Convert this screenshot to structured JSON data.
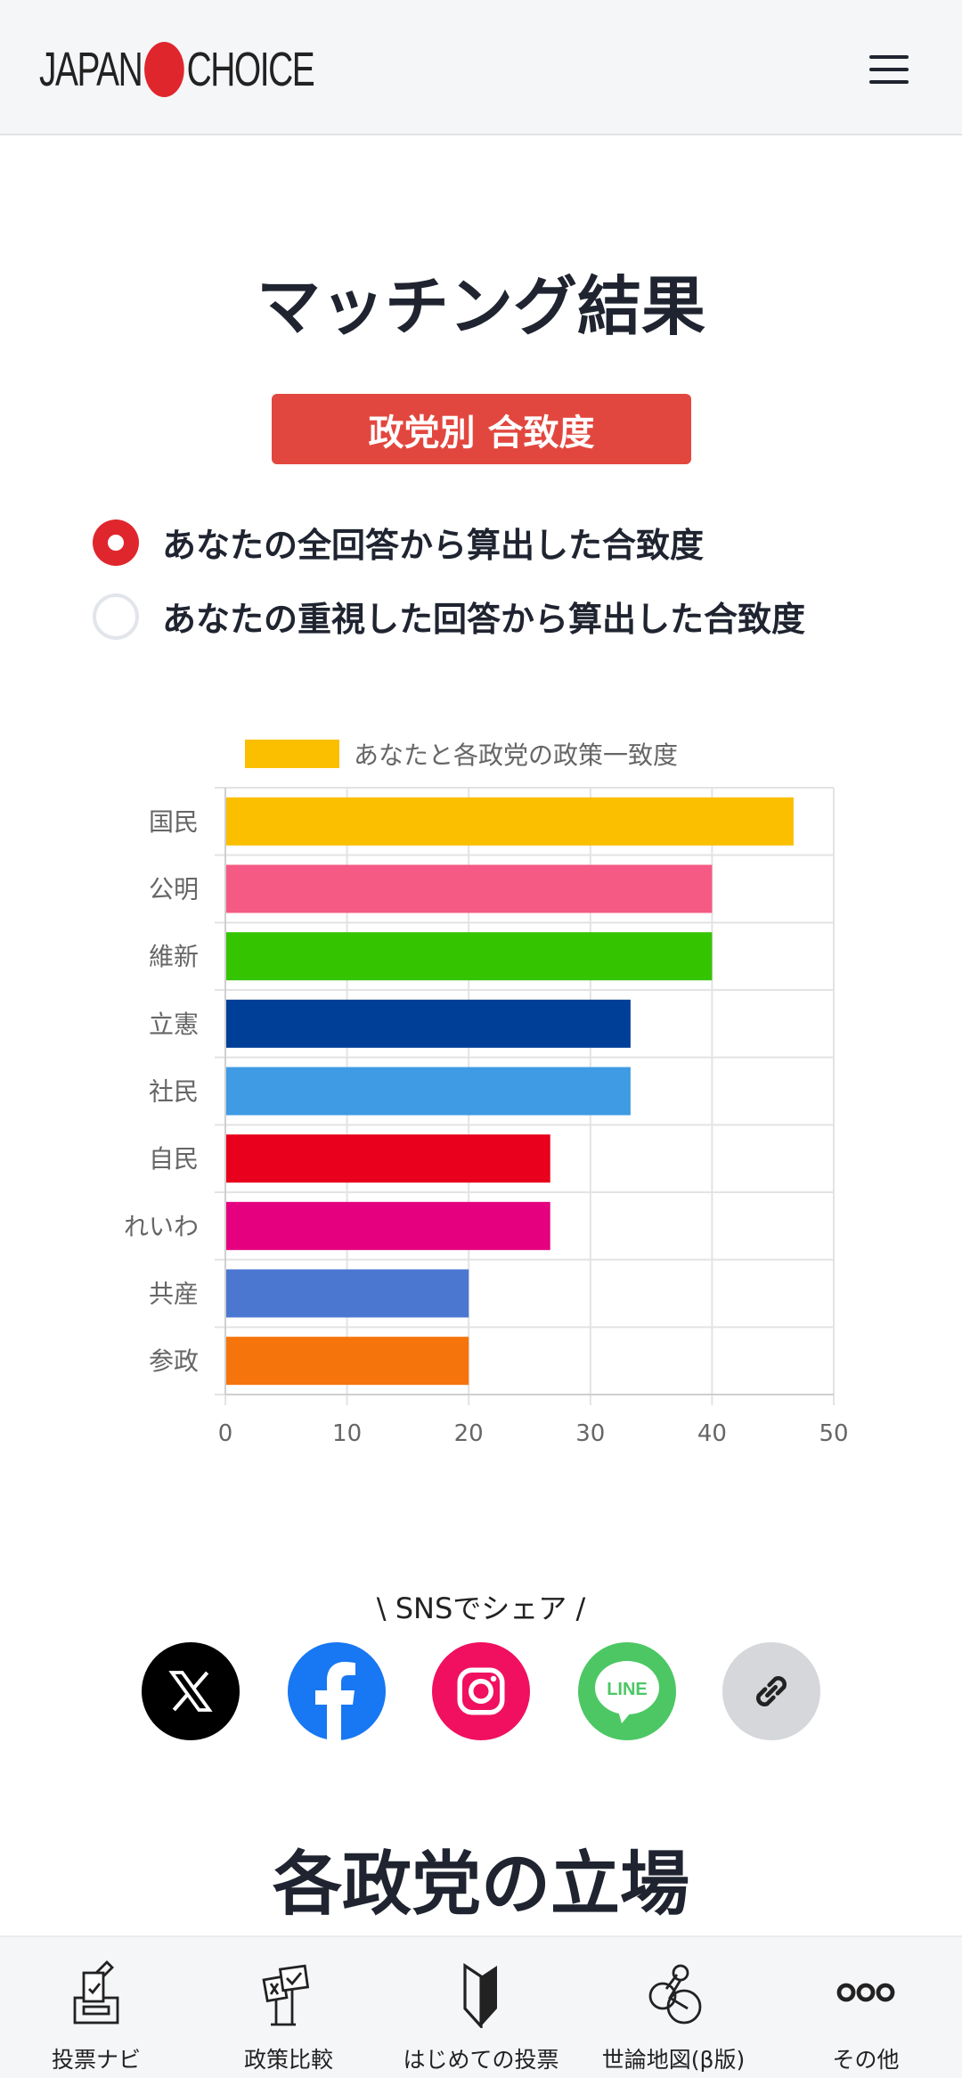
{
  "header": {
    "logo_left": "JAPAN",
    "logo_right": "CHOICE"
  },
  "title": "マッチング結果",
  "badge": "政党別 合致度",
  "options": [
    {
      "label": "あなたの全回答から算出した合致度",
      "selected": true
    },
    {
      "label": "あなたの重視した回答から算出した合致度",
      "selected": false
    }
  ],
  "chart_data": {
    "type": "bar",
    "orientation": "horizontal",
    "legend": "あなたと各政党の政策一致度",
    "categories": [
      "国民",
      "公明",
      "維新",
      "立憲",
      "社民",
      "自民",
      "れいわ",
      "共産",
      "参政"
    ],
    "values": [
      46.7,
      40,
      40,
      33.3,
      33.3,
      26.7,
      26.7,
      20,
      20
    ],
    "colors": [
      "#fbbf00",
      "#f45a83",
      "#35c400",
      "#003f98",
      "#3e9be4",
      "#e8001c",
      "#e4007f",
      "#4b77d1",
      "#f5740c"
    ],
    "xlim": [
      0,
      50
    ],
    "xticks": [
      "0",
      "10",
      "20",
      "30",
      "40",
      "50"
    ],
    "grid": true
  },
  "sns": {
    "label": "\\ SNSでシェア /",
    "items": [
      "x",
      "facebook",
      "instagram",
      "line",
      "copy-link"
    ],
    "line_text": "LINE"
  },
  "section_title": "各政党の立場",
  "nav": [
    {
      "label": "投票ナビ"
    },
    {
      "label": "政策比較"
    },
    {
      "label": "はじめての投票"
    },
    {
      "label": "世論地図(β版)"
    },
    {
      "label": "その他"
    }
  ]
}
